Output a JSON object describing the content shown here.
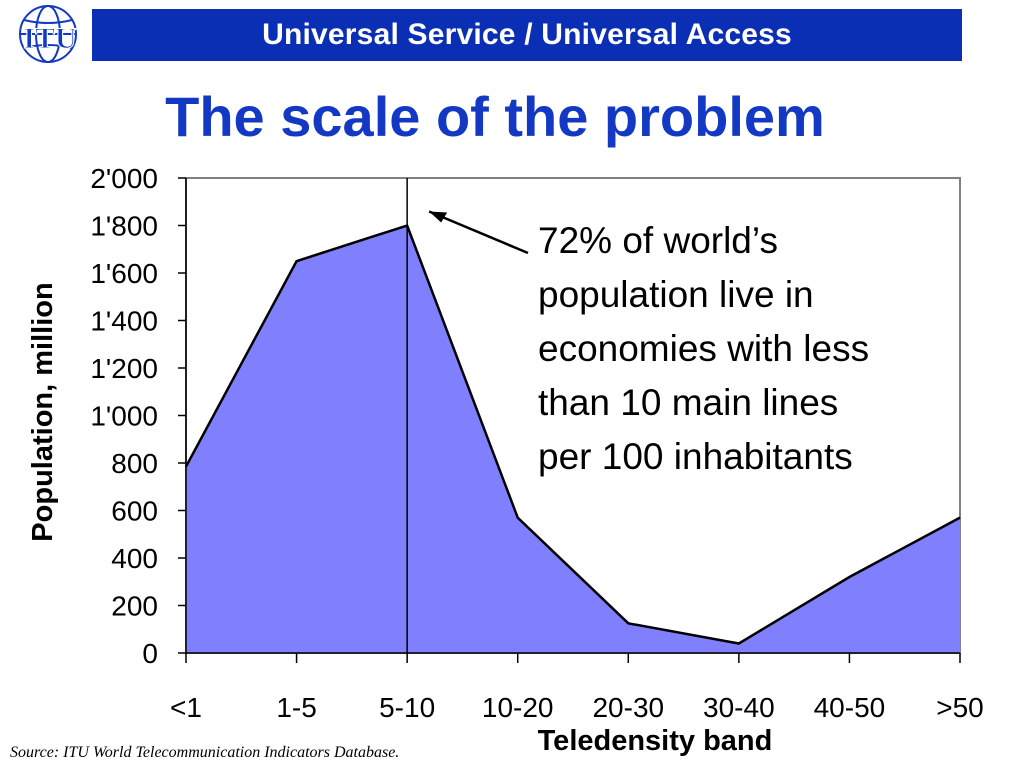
{
  "header": {
    "title": "Universal Service / Universal Access",
    "bar_color": "#0a2fb5",
    "logo_text": "ITU",
    "logo_icon": "globe-icon"
  },
  "slide": {
    "title": "The scale of the problem",
    "title_color": "#1339c4",
    "annotation": "72% of world’s\npopulation live in\neconomies with less\nthan 10 main lines\nper 100 inhabitants",
    "source": "Source: ITU World Telecommunication Indicators Database."
  },
  "chart_data": {
    "type": "area",
    "categories": [
      "<1",
      "1-5",
      "5-10",
      "10-20",
      "20-30",
      "30-40",
      "40-50",
      ">50"
    ],
    "values": [
      785,
      1650,
      1800,
      570,
      125,
      40,
      320,
      570
    ],
    "xlabel": "Teledensity band",
    "ylabel": "Population, million",
    "ylim": [
      0,
      2000
    ],
    "yticks": [
      0,
      200,
      400,
      600,
      800,
      1000,
      1200,
      1400,
      1600,
      1800,
      2000
    ],
    "ytick_labels": [
      "0",
      "200",
      "400",
      "600",
      "800",
      "1'000",
      "1'200",
      "1'400",
      "1'600",
      "1'800",
      "2'000"
    ],
    "fill_color": "#8080ff",
    "line_color": "#000000",
    "grid": false,
    "marker_category": "5-10"
  }
}
